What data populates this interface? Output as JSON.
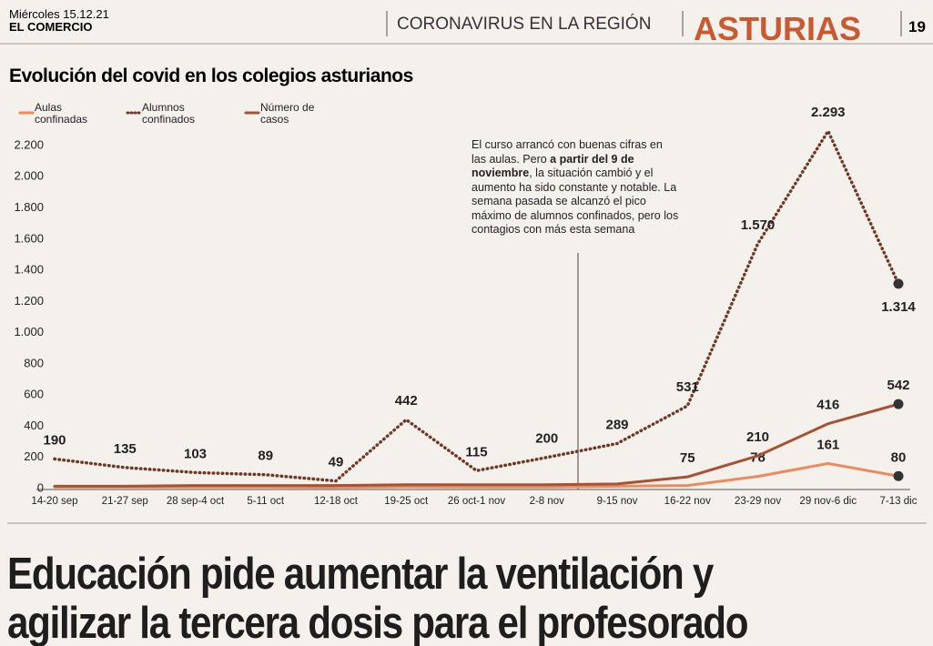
{
  "header": {
    "date": "Miércoles 15.12.21",
    "paper": "EL COMERCIO",
    "section": "CORONAVIRUS EN LA REGIÓN",
    "region": "ASTURIAS",
    "page": "19"
  },
  "chart_data": {
    "type": "line",
    "title": "Evolución del covid en los colegios asturianos",
    "categories": [
      "14-20 sep",
      "21-27 sep",
      "28 sep-4 oct",
      "5-11 oct",
      "12-18 oct",
      "19-25 oct",
      "26 oct-1 nov",
      "2-8 nov",
      "9-15 nov",
      "16-22 nov",
      "23-29 nov",
      "29 nov-6 dic",
      "7-13 dic"
    ],
    "series": [
      {
        "name": "Aulas confinadas",
        "color": "#ec8a5c",
        "dashed": false,
        "values": [
          10,
          10,
          10,
          10,
          8,
          12,
          10,
          10,
          15,
          20,
          78,
          161,
          80
        ],
        "value_labels": [
          null,
          null,
          null,
          null,
          null,
          null,
          null,
          null,
          null,
          null,
          "78",
          "161",
          "80"
        ]
      },
      {
        "name": "Alumnos confinados",
        "color": "#6e3a28",
        "dashed": true,
        "values": [
          190,
          135,
          103,
          89,
          49,
          442,
          115,
          200,
          289,
          531,
          1570,
          2293,
          1314
        ],
        "value_labels": [
          "190",
          "135",
          "103",
          "89",
          "49",
          "442",
          "115",
          "200",
          "289",
          "531",
          "1.570",
          "2.293",
          "1.314"
        ]
      },
      {
        "name": "Número de casos",
        "color": "#a65237",
        "dashed": false,
        "values": [
          15,
          15,
          20,
          20,
          20,
          25,
          25,
          25,
          30,
          75,
          210,
          416,
          542
        ],
        "value_labels": [
          null,
          null,
          null,
          null,
          null,
          null,
          null,
          null,
          null,
          "75",
          "210",
          "416",
          "542"
        ]
      }
    ],
    "ylim": [
      0,
      2200
    ],
    "yticks": [
      0,
      200,
      400,
      600,
      800,
      {
        "value": 1000,
        "label": "1.000"
      },
      {
        "value": 1200,
        "label": "1.200"
      },
      {
        "value": 1400,
        "label": "1.400"
      },
      {
        "value": 1600,
        "label": "1.600"
      },
      {
        "value": 1800,
        "label": "1.800"
      },
      {
        "value": 2000,
        "label": "2.000"
      },
      {
        "value": 2200,
        "label": "2.200"
      }
    ],
    "grid": false,
    "annotation": [
      "El curso arrancó con buenas cifras en las aulas. Pero ",
      "a partir del 9 de noviembre",
      ", la situación cambió y el aumento ha sido constante y notable. La semana pasada se alcanzó el pico máximo de alumnos confinados, pero los contagios con más esta semana"
    ]
  },
  "headline": [
    "Educación pide aumentar la ventilación y",
    "agilizar la tercera dosis para el profesorado"
  ]
}
